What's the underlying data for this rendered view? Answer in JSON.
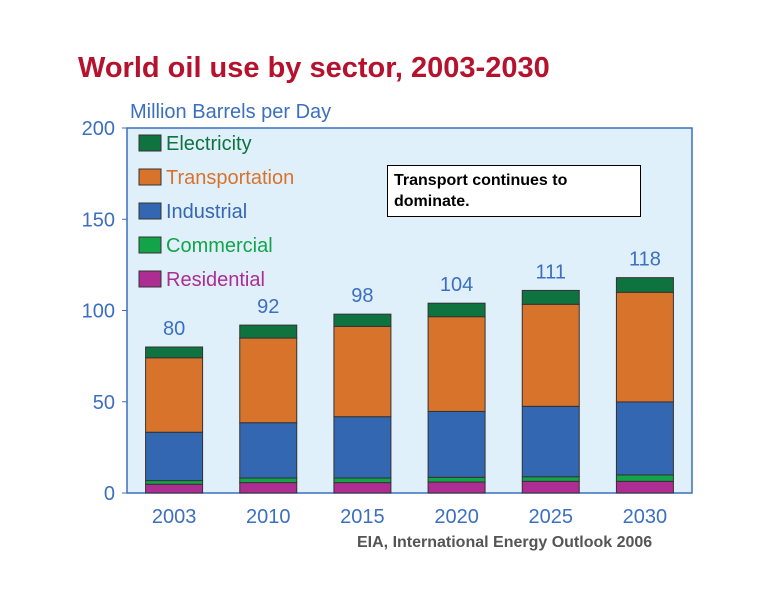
{
  "chart_data": {
    "type": "bar",
    "stacked": true,
    "title": "World oil use by sector, 2003-2030",
    "ylabel": "Million Barrels per Day",
    "ylim": [
      0,
      200
    ],
    "yticks": [
      0,
      50,
      100,
      150,
      200
    ],
    "categories": [
      "2003",
      "2010",
      "2015",
      "2020",
      "2025",
      "2030"
    ],
    "totals": [
      80,
      92,
      98,
      104,
      111,
      118
    ],
    "series": [
      {
        "name": "Residential",
        "color": "#ad2d93",
        "values": [
          4.8,
          5.7,
          5.7,
          6.0,
          6.4,
          6.4
        ]
      },
      {
        "name": "Commercial",
        "color": "#13a44a",
        "values": [
          2.0,
          2.5,
          2.5,
          2.6,
          2.5,
          3.5
        ]
      },
      {
        "name": "Industrial",
        "color": "#3467b2",
        "values": [
          26.5,
          30.3,
          33.6,
          36.1,
          38.6,
          40.0
        ]
      },
      {
        "name": "Transportation",
        "color": "#d8732b",
        "values": [
          40.8,
          46.4,
          49.5,
          51.9,
          55.9,
          60.1
        ]
      },
      {
        "name": "Electricity",
        "color": "#0f7340",
        "values": [
          5.9,
          7.1,
          6.7,
          7.4,
          7.6,
          8.0
        ]
      }
    ],
    "legend_order": [
      "Electricity",
      "Transportation",
      "Industrial",
      "Commercial",
      "Residential"
    ],
    "legend_text_colors": {
      "Electricity": "#0f7340",
      "Transportation": "#d8732b",
      "Industrial": "#3467b2",
      "Commercial": "#13a44a",
      "Residential": "#ad2d93"
    },
    "legend_placement": "top-left",
    "annotation": "Transport continues to dominate.",
    "source": "EIA, International Energy Outlook 2006",
    "grid": false,
    "plot_background": "#dff0fb"
  }
}
